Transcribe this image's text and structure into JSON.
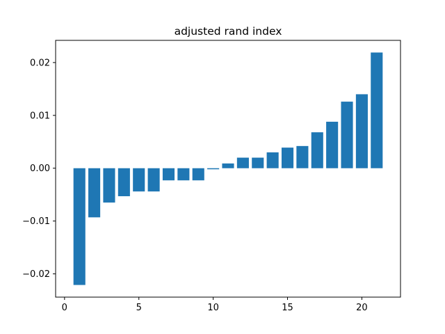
{
  "chart_data": {
    "type": "bar",
    "title": "adjusted rand index",
    "xlabel": "",
    "ylabel": "",
    "x": [
      1,
      2,
      3,
      4,
      5,
      6,
      7,
      8,
      9,
      10,
      11,
      12,
      13,
      14,
      15,
      16,
      17,
      18,
      19,
      20,
      21
    ],
    "values": [
      -0.0221,
      -0.0093,
      -0.0065,
      -0.0053,
      -0.0044,
      -0.0044,
      -0.0023,
      -0.0023,
      -0.0023,
      -0.0002,
      0.0009,
      0.002,
      0.002,
      0.003,
      0.0039,
      0.0042,
      0.0068,
      0.0088,
      0.0126,
      0.014,
      0.0219
    ],
    "xlim": [
      -0.6,
      22.6
    ],
    "ylim": [
      -0.0244,
      0.0242
    ],
    "xticks": [
      0,
      5,
      10,
      15,
      20
    ],
    "xtick_labels": [
      "0",
      "5",
      "10",
      "15",
      "20"
    ],
    "yticks": [
      -0.02,
      -0.01,
      0.0,
      0.01,
      0.02
    ],
    "ytick_labels": [
      "−0.02",
      "−0.01",
      "0.00",
      "0.01",
      "0.02"
    ],
    "bar_color": "#1f77b4",
    "grid": false,
    "legend": "none"
  }
}
